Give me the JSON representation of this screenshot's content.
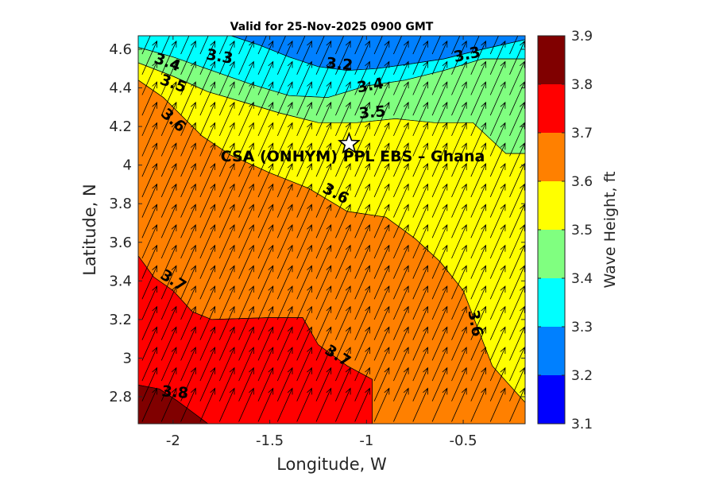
{
  "chart_data": {
    "type": "contour",
    "title": "Valid for 25-Nov-2025 0900 GMT",
    "xlabel": "Longitude, W",
    "ylabel": "Latitude, N",
    "xlim": [
      -2.18,
      -0.18
    ],
    "ylim": [
      2.66,
      4.67
    ],
    "x_ticks": [
      -2,
      -1.5,
      -1,
      -0.5
    ],
    "x_tick_labels": [
      "-2",
      "-1.5",
      "-1",
      "-0.5"
    ],
    "y_ticks": [
      2.8,
      3,
      3.2,
      3.4,
      3.6,
      3.8,
      4,
      4.2,
      4.4,
      4.6
    ],
    "y_tick_labels": [
      "2.8",
      "3",
      "3.2",
      "3.4",
      "3.6",
      "3.8",
      "4",
      "4.2",
      "4.4",
      "4.6"
    ],
    "colorbar": {
      "label": "Wave Height, ft",
      "range": [
        3.1,
        3.9
      ],
      "ticks": [
        "3.1",
        "3.2",
        "3.3",
        "3.4",
        "3.5",
        "3.6",
        "3.7",
        "3.8",
        "3.9"
      ],
      "levels": [
        {
          "from": 3.1,
          "to": 3.2,
          "color": "#0000ff"
        },
        {
          "from": 3.2,
          "to": 3.3,
          "color": "#0080ff"
        },
        {
          "from": 3.3,
          "to": 3.4,
          "color": "#00ffff"
        },
        {
          "from": 3.4,
          "to": 3.5,
          "color": "#80ff80"
        },
        {
          "from": 3.5,
          "to": 3.6,
          "color": "#ffff00"
        },
        {
          "from": 3.6,
          "to": 3.7,
          "color": "#ff8000"
        },
        {
          "from": 3.7,
          "to": 3.8,
          "color": "#ff0000"
        },
        {
          "from": 3.8,
          "to": 3.9,
          "color": "#800000"
        }
      ]
    },
    "regions": [
      {
        "level": 3.2,
        "polygon": [
          [
            -2.18,
            4.67
          ],
          [
            -0.18,
            4.67
          ],
          [
            -0.18,
            4.65
          ],
          [
            -0.4,
            4.6
          ],
          [
            -0.6,
            4.55
          ],
          [
            -0.8,
            4.52
          ],
          [
            -0.95,
            4.5
          ],
          [
            -1.1,
            4.49
          ],
          [
            -1.25,
            4.51
          ],
          [
            -1.4,
            4.56
          ],
          [
            -1.55,
            4.62
          ],
          [
            -1.7,
            4.67
          ]
        ]
      },
      {
        "level": 3.3,
        "polygon": [
          [
            -2.18,
            4.67
          ],
          [
            -1.7,
            4.67
          ],
          [
            -1.55,
            4.62
          ],
          [
            -1.4,
            4.56
          ],
          [
            -1.25,
            4.51
          ],
          [
            -1.1,
            4.49
          ],
          [
            -0.95,
            4.5
          ],
          [
            -0.8,
            4.52
          ],
          [
            -0.6,
            4.55
          ],
          [
            -0.4,
            4.6
          ],
          [
            -0.18,
            4.65
          ],
          [
            -0.18,
            4.55
          ],
          [
            -0.4,
            4.55
          ],
          [
            -0.6,
            4.49
          ],
          [
            -0.8,
            4.44
          ],
          [
            -1.0,
            4.41
          ],
          [
            -1.2,
            4.35
          ],
          [
            -1.4,
            4.36
          ],
          [
            -1.6,
            4.42
          ],
          [
            -1.8,
            4.49
          ],
          [
            -2.0,
            4.56
          ],
          [
            -2.18,
            4.61
          ]
        ]
      },
      {
        "level": 3.4,
        "polygon": [
          [
            -2.18,
            4.61
          ],
          [
            -2.0,
            4.56
          ],
          [
            -1.8,
            4.49
          ],
          [
            -1.6,
            4.42
          ],
          [
            -1.4,
            4.36
          ],
          [
            -1.2,
            4.35
          ],
          [
            -1.0,
            4.41
          ],
          [
            -0.8,
            4.44
          ],
          [
            -0.6,
            4.49
          ],
          [
            -0.4,
            4.55
          ],
          [
            -0.18,
            4.55
          ],
          [
            -0.18,
            4.06
          ],
          [
            -0.28,
            4.06
          ],
          [
            -0.45,
            4.22
          ],
          [
            -0.65,
            4.22
          ],
          [
            -0.85,
            4.24
          ],
          [
            -1.05,
            4.22
          ],
          [
            -1.25,
            4.22
          ],
          [
            -1.45,
            4.27
          ],
          [
            -1.65,
            4.33
          ],
          [
            -1.82,
            4.38
          ],
          [
            -2.0,
            4.46
          ],
          [
            -2.18,
            4.53
          ]
        ]
      },
      {
        "level": 3.5,
        "polygon": [
          [
            -2.18,
            4.53
          ],
          [
            -2.0,
            4.46
          ],
          [
            -1.82,
            4.38
          ],
          [
            -1.65,
            4.33
          ],
          [
            -1.45,
            4.27
          ],
          [
            -1.25,
            4.22
          ],
          [
            -1.05,
            4.22
          ],
          [
            -0.85,
            4.24
          ],
          [
            -0.65,
            4.22
          ],
          [
            -0.45,
            4.22
          ],
          [
            -0.28,
            4.06
          ],
          [
            -0.18,
            4.06
          ],
          [
            -0.18,
            2.77
          ],
          [
            -0.35,
            2.96
          ],
          [
            -0.5,
            3.35
          ],
          [
            -0.62,
            3.5
          ],
          [
            -0.75,
            3.62
          ],
          [
            -0.9,
            3.73
          ],
          [
            -1.1,
            3.76
          ],
          [
            -1.3,
            3.88
          ],
          [
            -1.5,
            3.96
          ],
          [
            -1.7,
            4.05
          ],
          [
            -1.85,
            4.15
          ],
          [
            -2.05,
            4.35
          ],
          [
            -2.18,
            4.44
          ]
        ]
      },
      {
        "level": 3.6,
        "polygon": [
          [
            -2.18,
            4.44
          ],
          [
            -2.05,
            4.35
          ],
          [
            -1.85,
            4.15
          ],
          [
            -1.7,
            4.05
          ],
          [
            -1.5,
            3.96
          ],
          [
            -1.3,
            3.88
          ],
          [
            -1.1,
            3.76
          ],
          [
            -0.9,
            3.73
          ],
          [
            -0.75,
            3.62
          ],
          [
            -0.62,
            3.5
          ],
          [
            -0.5,
            3.35
          ],
          [
            -0.35,
            2.96
          ],
          [
            -0.18,
            2.77
          ],
          [
            -0.18,
            2.66
          ],
          [
            -0.97,
            2.66
          ],
          [
            -0.97,
            2.89
          ],
          [
            -1.1,
            2.96
          ],
          [
            -1.25,
            3.07
          ],
          [
            -1.33,
            3.21
          ],
          [
            -1.5,
            3.21
          ],
          [
            -1.8,
            3.2
          ],
          [
            -1.9,
            3.24
          ],
          [
            -2.0,
            3.35
          ],
          [
            -2.1,
            3.42
          ],
          [
            -2.18,
            3.53
          ]
        ]
      },
      {
        "level": 3.7,
        "polygon": [
          [
            -2.18,
            3.53
          ],
          [
            -2.1,
            3.42
          ],
          [
            -2.0,
            3.35
          ],
          [
            -1.9,
            3.24
          ],
          [
            -1.8,
            3.2
          ],
          [
            -1.5,
            3.21
          ],
          [
            -1.33,
            3.21
          ],
          [
            -1.25,
            3.07
          ],
          [
            -1.1,
            2.96
          ],
          [
            -0.97,
            2.89
          ],
          [
            -0.97,
            2.66
          ],
          [
            -1.82,
            2.66
          ],
          [
            -1.9,
            2.72
          ],
          [
            -1.98,
            2.78
          ],
          [
            -2.07,
            2.84
          ],
          [
            -2.18,
            2.86
          ]
        ]
      },
      {
        "level": 3.8,
        "polygon": [
          [
            -2.18,
            2.86
          ],
          [
            -2.07,
            2.84
          ],
          [
            -1.98,
            2.78
          ],
          [
            -1.9,
            2.72
          ],
          [
            -1.82,
            2.66
          ],
          [
            -2.18,
            2.66
          ]
        ]
      }
    ],
    "contour_labels": [
      {
        "text": "3.2",
        "x": -1.14,
        "y": 4.52,
        "angle": 5
      },
      {
        "text": "3.3",
        "x": -1.76,
        "y": 4.56,
        "angle": 10
      },
      {
        "text": "3.3",
        "x": -0.48,
        "y": 4.57,
        "angle": -12
      },
      {
        "text": "3.4",
        "x": -2.03,
        "y": 4.53,
        "angle": 20
      },
      {
        "text": "3.4",
        "x": -0.98,
        "y": 4.41,
        "angle": -10
      },
      {
        "text": "3.5",
        "x": -2.0,
        "y": 4.42,
        "angle": 20
      },
      {
        "text": "3.5",
        "x": -0.97,
        "y": 4.27,
        "angle": -5
      },
      {
        "text": "3.6",
        "x": -2.0,
        "y": 4.23,
        "angle": 42
      },
      {
        "text": "3.6",
        "x": -1.16,
        "y": 3.85,
        "angle": 28
      },
      {
        "text": "3.6",
        "x": -0.44,
        "y": 3.18,
        "angle": 80
      },
      {
        "text": "3.7",
        "x": -2.0,
        "y": 3.4,
        "angle": 32
      },
      {
        "text": "3.7",
        "x": -1.15,
        "y": 3.01,
        "angle": 32
      },
      {
        "text": "3.8",
        "x": -1.99,
        "y": 2.82,
        "angle": 5
      }
    ],
    "site": {
      "label": "CSA (ONHYM) PPL EBS  – Ghana",
      "lon": -1.09,
      "lat": 4.11
    }
  }
}
